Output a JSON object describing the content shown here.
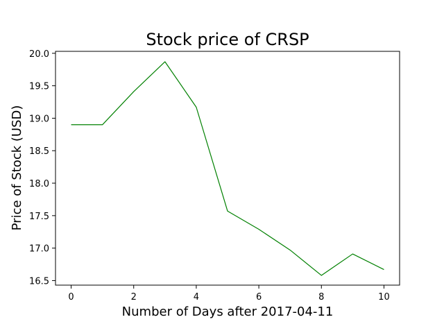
{
  "chart_data": {
    "type": "line",
    "title": "Stock price of CRSP",
    "xlabel": "Number of Days after 2017-04-11",
    "ylabel": "Price of Stock (USD)",
    "xlim": [
      -0.5,
      10.5
    ],
    "ylim": [
      16.43,
      20.03
    ],
    "xticks": [
      0,
      2,
      4,
      6,
      8,
      10
    ],
    "yticks": [
      16.5,
      17.0,
      17.5,
      18.0,
      18.5,
      19.0,
      19.5,
      20.0
    ],
    "grid": false,
    "series": [
      {
        "color": "#008000",
        "x": [
          0,
          1,
          2,
          3,
          4,
          5,
          6,
          7,
          8,
          9,
          10
        ],
        "y": [
          18.9,
          18.9,
          19.41,
          19.87,
          19.17,
          17.57,
          17.29,
          16.97,
          16.58,
          16.91,
          16.67
        ]
      }
    ]
  }
}
